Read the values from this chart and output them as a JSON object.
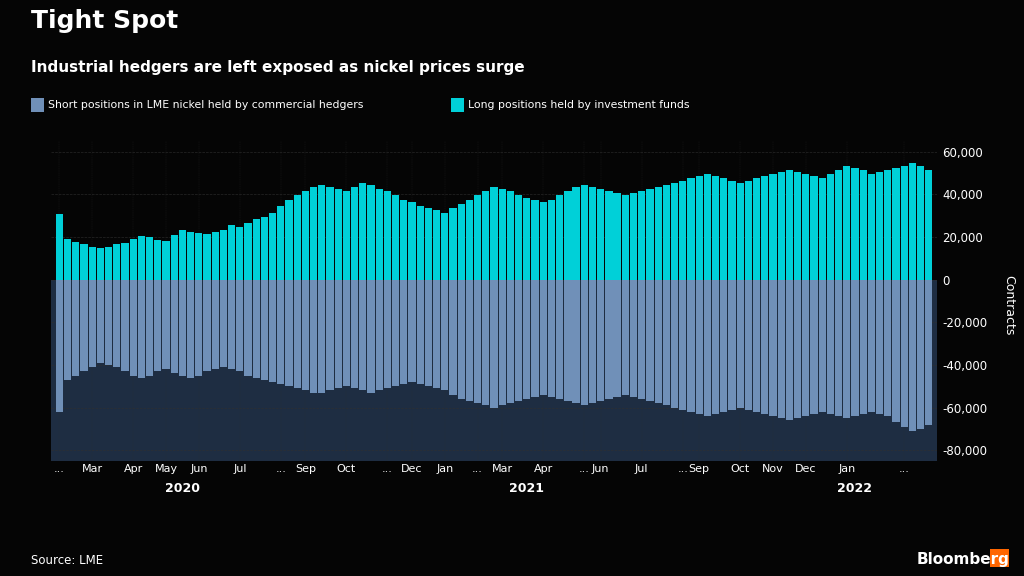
{
  "title": "Tight Spot",
  "subtitle": "Industrial hedgers are left exposed as nickel prices surge",
  "legend_long": "Long positions held by investment funds",
  "legend_short": "Short positions in LME nickel held by commercial hedgers",
  "ylabel": "Contracts",
  "source": "Source: LME",
  "ylim": [
    -85000,
    65000
  ],
  "yticks": [
    -80000,
    -60000,
    -40000,
    -20000,
    0,
    20000,
    40000,
    60000
  ],
  "bg_color": "#050505",
  "neg_bg_color": "#1e2d42",
  "bar_color_positive": "#00d0d8",
  "bar_color_negative": "#7090b8",
  "grid_color": "#303030",
  "text_color": "#ffffff",
  "long_values": [
    31000,
    19000,
    17500,
    16500,
    15500,
    15000,
    15500,
    16500,
    17000,
    19000,
    20500,
    20000,
    18500,
    18000,
    21000,
    23500,
    22500,
    22000,
    21500,
    22500,
    23500,
    25500,
    24500,
    26500,
    28500,
    29500,
    31500,
    34500,
    37500,
    39500,
    41500,
    43500,
    44500,
    43500,
    42500,
    41500,
    43500,
    45500,
    44500,
    42500,
    41500,
    39500,
    37500,
    36500,
    34500,
    33500,
    32500,
    31500,
    33500,
    35500,
    37500,
    39500,
    41500,
    43500,
    42500,
    41500,
    39500,
    38500,
    37500,
    36500,
    37500,
    39500,
    41500,
    43500,
    44500,
    43500,
    42500,
    41500,
    40500,
    39500,
    40500,
    41500,
    42500,
    43500,
    44500,
    45500,
    46500,
    47500,
    48500,
    49500,
    48500,
    47500,
    46500,
    45500,
    46500,
    47500,
    48500,
    49500,
    50500,
    51500,
    50500,
    49500,
    48500,
    47500,
    49500,
    51500,
    53500,
    52500,
    51500,
    49500,
    50500,
    51500,
    52500,
    53500,
    54500,
    53500,
    51500
  ],
  "short_values": [
    -62000,
    -47000,
    -45000,
    -43000,
    -41000,
    -39000,
    -40000,
    -41000,
    -43000,
    -45000,
    -46000,
    -45000,
    -43000,
    -42000,
    -44000,
    -45000,
    -46000,
    -45000,
    -43000,
    -42000,
    -41000,
    -42000,
    -43000,
    -45000,
    -46000,
    -47000,
    -48000,
    -49000,
    -50000,
    -51000,
    -52000,
    -53000,
    -53000,
    -52000,
    -51000,
    -50000,
    -51000,
    -52000,
    -53000,
    -52000,
    -51000,
    -50000,
    -49000,
    -48000,
    -49000,
    -50000,
    -51000,
    -52000,
    -54000,
    -56000,
    -57000,
    -58000,
    -59000,
    -60000,
    -59000,
    -58000,
    -57000,
    -56000,
    -55000,
    -54000,
    -55000,
    -56000,
    -57000,
    -58000,
    -59000,
    -58000,
    -57000,
    -56000,
    -55000,
    -54000,
    -55000,
    -56000,
    -57000,
    -58000,
    -59000,
    -60000,
    -61000,
    -62000,
    -63000,
    -64000,
    -63000,
    -62000,
    -61000,
    -60000,
    -61000,
    -62000,
    -63000,
    -64000,
    -65000,
    -66000,
    -65000,
    -64000,
    -63000,
    -62000,
    -63000,
    -64000,
    -65000,
    -64000,
    -63000,
    -62000,
    -63000,
    -64000,
    -67000,
    -69000,
    -71000,
    -70000,
    -68000
  ],
  "xtick_positions": [
    0,
    4,
    9,
    13,
    17,
    22,
    27,
    30,
    35,
    40,
    43,
    47,
    51,
    54,
    59,
    64,
    66,
    71,
    76,
    78,
    83,
    87,
    91,
    96,
    103
  ],
  "xtick_labels": [
    "...",
    "Mar",
    "Apr",
    "May",
    "Jun",
    "Jul",
    "...",
    "Sep",
    "Oct",
    "...",
    "Dec",
    "Jan",
    "...",
    "Mar",
    "Apr",
    "...",
    "Jun",
    "Jul",
    "...",
    "Sep",
    "Oct",
    "Nov",
    "Dec",
    "Jan",
    "..."
  ],
  "year_labels": [
    [
      "2020",
      15
    ],
    [
      "2021",
      57
    ],
    [
      "2022",
      97
    ]
  ],
  "jan2021_vline_x": 46.5
}
